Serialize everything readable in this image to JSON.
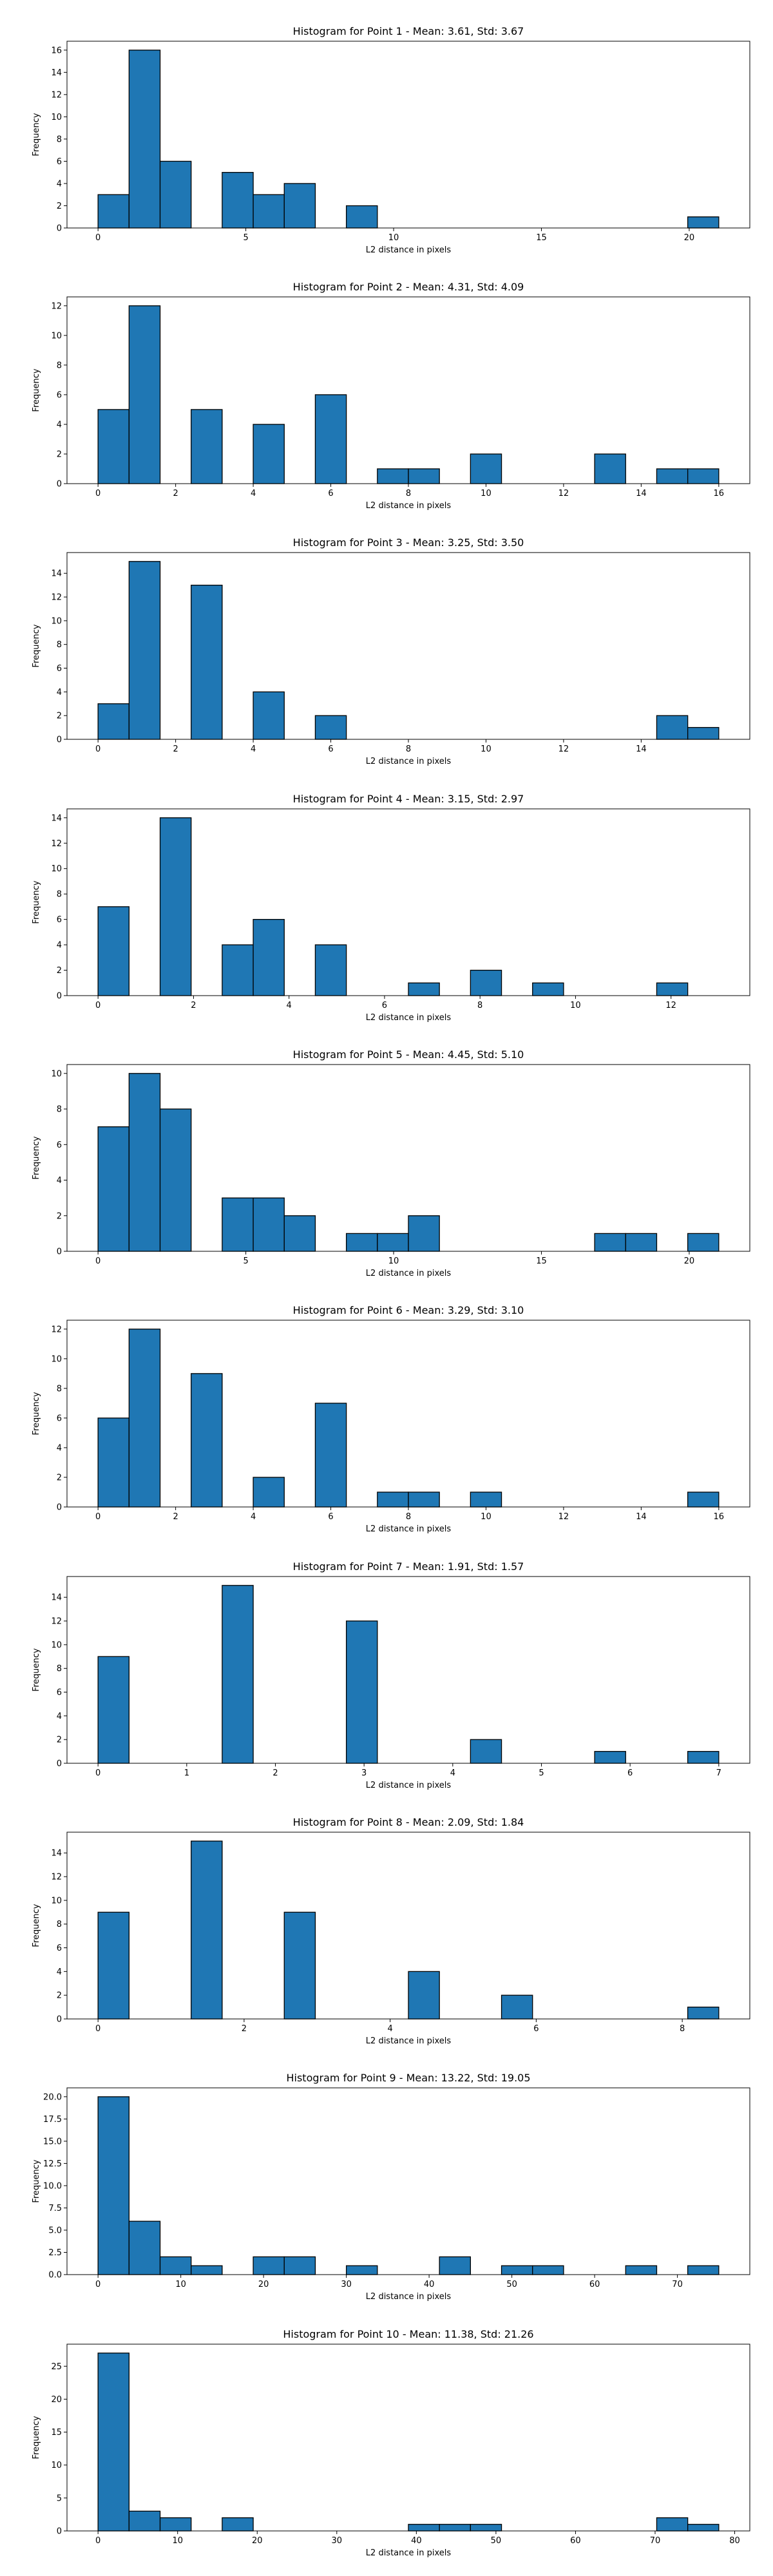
{
  "colors": {
    "bar_fill": "#1f77b4",
    "bar_edge": "#000000",
    "axes": "#000000",
    "background": "#ffffff"
  },
  "chart_data": [
    {
      "type": "bar",
      "title": "Histogram for Point 1 - Mean: 3.61, Std: 3.67",
      "xlabel": "L2 distance in pixels",
      "ylabel": "Frequency",
      "xlim": [
        -1.05,
        22.05
      ],
      "ylim": [
        0,
        16.8
      ],
      "xticks": [
        0,
        5,
        10,
        15,
        20
      ],
      "xtick_labels": [
        "0",
        "5",
        "10",
        "15",
        "20"
      ],
      "yticks": [
        0,
        2,
        4,
        6,
        8,
        10,
        12,
        14,
        16
      ],
      "ytick_labels": [
        "0",
        "2",
        "4",
        "6",
        "8",
        "10",
        "12",
        "14",
        "16"
      ],
      "bin_edges": [
        0,
        1.05,
        2.1,
        3.15,
        4.2,
        5.25,
        6.3,
        7.35,
        8.4,
        9.45,
        10.5,
        11.55,
        12.6,
        13.65,
        14.7,
        15.75,
        16.8,
        17.85,
        18.9,
        19.95,
        21
      ],
      "values": [
        3,
        16,
        6,
        0,
        5,
        3,
        4,
        0,
        2,
        0,
        0,
        0,
        0,
        0,
        0,
        0,
        0,
        0,
        0,
        1
      ]
    },
    {
      "type": "bar",
      "title": "Histogram for Point 2 - Mean: 4.31, Std: 4.09",
      "xlabel": "L2 distance in pixels",
      "ylabel": "Frequency",
      "xlim": [
        -0.8,
        16.8
      ],
      "ylim": [
        0,
        12.6
      ],
      "xticks": [
        0,
        2,
        4,
        6,
        8,
        10,
        12,
        14,
        16
      ],
      "xtick_labels": [
        "0",
        "2",
        "4",
        "6",
        "8",
        "10",
        "12",
        "14",
        "16"
      ],
      "yticks": [
        0,
        2,
        4,
        6,
        8,
        10,
        12
      ],
      "ytick_labels": [
        "0",
        "2",
        "4",
        "6",
        "8",
        "10",
        "12"
      ],
      "bin_edges": [
        0,
        0.8,
        1.6,
        2.4,
        3.2,
        4.0,
        4.8,
        5.6,
        6.4,
        7.2,
        8.0,
        8.8,
        9.6,
        10.4,
        11.2,
        12.0,
        12.8,
        13.6,
        14.4,
        15.2,
        16.0
      ],
      "values": [
        5,
        12,
        0,
        5,
        0,
        4,
        0,
        6,
        0,
        1,
        1,
        0,
        2,
        0,
        0,
        0,
        2,
        0,
        1,
        1
      ]
    },
    {
      "type": "bar",
      "title": "Histogram for Point 3 - Mean: 3.25, Std: 3.50",
      "xlabel": "L2 distance in pixels",
      "ylabel": "Frequency",
      "xlim": [
        -0.8,
        16.8
      ],
      "ylim": [
        0,
        15.75
      ],
      "xticks": [
        0,
        2,
        4,
        6,
        8,
        10,
        12,
        14
      ],
      "xtick_labels": [
        "0",
        "2",
        "4",
        "6",
        "8",
        "10",
        "12",
        "14"
      ],
      "yticks": [
        0,
        2,
        4,
        6,
        8,
        10,
        12,
        14
      ],
      "ytick_labels": [
        "0",
        "2",
        "4",
        "6",
        "8",
        "10",
        "12",
        "14"
      ],
      "bin_edges": [
        0,
        0.8,
        1.6,
        2.4,
        3.2,
        4.0,
        4.8,
        5.6,
        6.4,
        7.2,
        8.0,
        8.8,
        9.6,
        10.4,
        11.2,
        12.0,
        12.8,
        13.6,
        14.4,
        15.2,
        16.0
      ],
      "values": [
        3,
        15,
        0,
        13,
        0,
        4,
        0,
        2,
        0,
        0,
        0,
        0,
        0,
        0,
        0,
        0,
        0,
        0,
        2,
        1
      ]
    },
    {
      "type": "bar",
      "title": "Histogram for Point 4 - Mean: 3.15, Std: 2.97",
      "xlabel": "L2 distance in pixels",
      "ylabel": "Frequency",
      "xlim": [
        -0.65,
        13.65
      ],
      "ylim": [
        0,
        14.7
      ],
      "xticks": [
        0,
        2,
        4,
        6,
        8,
        10,
        12
      ],
      "xtick_labels": [
        "0",
        "2",
        "4",
        "6",
        "8",
        "10",
        "12"
      ],
      "yticks": [
        0,
        2,
        4,
        6,
        8,
        10,
        12,
        14
      ],
      "ytick_labels": [
        "0",
        "2",
        "4",
        "6",
        "8",
        "10",
        "12",
        "14"
      ],
      "bin_edges": [
        0,
        0.65,
        1.3,
        1.95,
        2.6,
        3.25,
        3.9,
        4.55,
        5.2,
        5.85,
        6.5,
        7.15,
        7.8,
        8.45,
        9.1,
        9.75,
        10.4,
        11.05,
        11.7,
        12.35,
        13.0
      ],
      "values": [
        7,
        0,
        14,
        0,
        4,
        6,
        0,
        4,
        0,
        0,
        1,
        0,
        2,
        0,
        1,
        0,
        0,
        0,
        1,
        0
      ]
    },
    {
      "type": "bar",
      "title": "Histogram for Point 5 - Mean: 4.45, Std: 5.10",
      "xlabel": "L2 distance in pixels",
      "ylabel": "Frequency",
      "xlim": [
        -1.05,
        22.05
      ],
      "ylim": [
        0,
        10.5
      ],
      "xticks": [
        0,
        5,
        10,
        15,
        20
      ],
      "xtick_labels": [
        "0",
        "5",
        "10",
        "15",
        "20"
      ],
      "yticks": [
        0,
        2,
        4,
        6,
        8,
        10
      ],
      "ytick_labels": [
        "0",
        "2",
        "4",
        "6",
        "8",
        "10"
      ],
      "bin_edges": [
        0,
        1.05,
        2.1,
        3.15,
        4.2,
        5.25,
        6.3,
        7.35,
        8.4,
        9.45,
        10.5,
        11.55,
        12.6,
        13.65,
        14.7,
        15.75,
        16.8,
        17.85,
        18.9,
        19.95,
        21
      ],
      "values": [
        7,
        10,
        8,
        0,
        3,
        3,
        2,
        0,
        1,
        1,
        2,
        0,
        0,
        0,
        0,
        0,
        1,
        1,
        0,
        1
      ]
    },
    {
      "type": "bar",
      "title": "Histogram for Point 6 - Mean: 3.29, Std: 3.10",
      "xlabel": "L2 distance in pixels",
      "ylabel": "Frequency",
      "xlim": [
        -0.8,
        16.8
      ],
      "ylim": [
        0,
        12.6
      ],
      "xticks": [
        0,
        2,
        4,
        6,
        8,
        10,
        12,
        14,
        16
      ],
      "xtick_labels": [
        "0",
        "2",
        "4",
        "6",
        "8",
        "10",
        "12",
        "14",
        "16"
      ],
      "yticks": [
        0,
        2,
        4,
        6,
        8,
        10,
        12
      ],
      "ytick_labels": [
        "0",
        "2",
        "4",
        "6",
        "8",
        "10",
        "12"
      ],
      "bin_edges": [
        0,
        0.8,
        1.6,
        2.4,
        3.2,
        4.0,
        4.8,
        5.6,
        6.4,
        7.2,
        8.0,
        8.8,
        9.6,
        10.4,
        11.2,
        12.0,
        12.8,
        13.6,
        14.4,
        15.2,
        16.0
      ],
      "values": [
        6,
        12,
        0,
        9,
        0,
        2,
        0,
        7,
        0,
        1,
        1,
        0,
        1,
        0,
        0,
        0,
        0,
        0,
        0,
        1
      ]
    },
    {
      "type": "bar",
      "title": "Histogram for Point 7 - Mean: 1.91, Std: 1.57",
      "xlabel": "L2 distance in pixels",
      "ylabel": "Frequency",
      "xlim": [
        -0.35,
        7.35
      ],
      "ylim": [
        0,
        15.75
      ],
      "xticks": [
        0,
        1,
        2,
        3,
        4,
        5,
        6,
        7
      ],
      "xtick_labels": [
        "0",
        "1",
        "2",
        "3",
        "4",
        "5",
        "6",
        "7"
      ],
      "yticks": [
        0,
        2,
        4,
        6,
        8,
        10,
        12,
        14
      ],
      "ytick_labels": [
        "0",
        "2",
        "4",
        "6",
        "8",
        "10",
        "12",
        "14"
      ],
      "bin_edges": [
        0,
        0.35,
        0.7,
        1.05,
        1.4,
        1.75,
        2.1,
        2.45,
        2.8,
        3.15,
        3.5,
        3.85,
        4.2,
        4.55,
        4.9,
        5.25,
        5.6,
        5.95,
        6.3,
        6.65,
        7.0
      ],
      "values": [
        9,
        0,
        0,
        0,
        15,
        0,
        0,
        0,
        12,
        0,
        0,
        0,
        2,
        0,
        0,
        0,
        1,
        0,
        0,
        1
      ]
    },
    {
      "type": "bar",
      "title": "Histogram for Point 8 - Mean: 2.09, Std: 1.84",
      "xlabel": "L2 distance in pixels",
      "ylabel": "Frequency",
      "xlim": [
        -0.425,
        8.925
      ],
      "ylim": [
        0,
        15.75
      ],
      "xticks": [
        0,
        2,
        4,
        6,
        8
      ],
      "xtick_labels": [
        "0",
        "2",
        "4",
        "6",
        "8"
      ],
      "yticks": [
        0,
        2,
        4,
        6,
        8,
        10,
        12,
        14
      ],
      "ytick_labels": [
        "0",
        "2",
        "4",
        "6",
        "8",
        "10",
        "12",
        "14"
      ],
      "bin_edges": [
        0,
        0.425,
        0.85,
        1.275,
        1.7,
        2.125,
        2.55,
        2.975,
        3.4,
        3.825,
        4.25,
        4.675,
        5.1,
        5.525,
        5.95,
        6.375,
        6.8,
        7.225,
        7.65,
        8.075,
        8.5
      ],
      "values": [
        9,
        0,
        0,
        15,
        0,
        0,
        9,
        0,
        0,
        0,
        4,
        0,
        0,
        2,
        0,
        0,
        0,
        0,
        0,
        1
      ]
    },
    {
      "type": "bar",
      "title": "Histogram for Point 9 - Mean: 13.22, Std: 19.05",
      "xlabel": "L2 distance in pixels",
      "ylabel": "Frequency",
      "xlim": [
        -3.75,
        78.75
      ],
      "ylim": [
        0,
        21.0
      ],
      "xticks": [
        0,
        10,
        20,
        30,
        40,
        50,
        60,
        70
      ],
      "xtick_labels": [
        "0",
        "10",
        "20",
        "30",
        "40",
        "50",
        "60",
        "70"
      ],
      "yticks": [
        0,
        2.5,
        5,
        7.5,
        10,
        12.5,
        15,
        17.5,
        20
      ],
      "ytick_labels": [
        "0.0",
        "2.5",
        "5.0",
        "7.5",
        "10.0",
        "12.5",
        "15.0",
        "17.5",
        "20.0"
      ],
      "bin_edges": [
        0,
        3.75,
        7.5,
        11.25,
        15,
        18.75,
        22.5,
        26.25,
        30,
        33.75,
        37.5,
        41.25,
        45,
        48.75,
        52.5,
        56.25,
        60,
        63.75,
        67.5,
        71.25,
        75
      ],
      "values": [
        20,
        6,
        2,
        1,
        0,
        2,
        2,
        0,
        1,
        0,
        0,
        2,
        0,
        1,
        1,
        0,
        0,
        1,
        0,
        1
      ]
    },
    {
      "type": "bar",
      "title": "Histogram for Point 10 - Mean: 11.38, Std: 21.26",
      "xlabel": "L2 distance in pixels",
      "ylabel": "Frequency",
      "xlim": [
        -3.9,
        81.9
      ],
      "ylim": [
        0,
        28.35
      ],
      "xticks": [
        0,
        10,
        20,
        30,
        40,
        50,
        60,
        70,
        80
      ],
      "xtick_labels": [
        "0",
        "10",
        "20",
        "30",
        "40",
        "50",
        "60",
        "70",
        "80"
      ],
      "yticks": [
        0,
        5,
        10,
        15,
        20,
        25
      ],
      "ytick_labels": [
        "0",
        "5",
        "10",
        "15",
        "20",
        "25"
      ],
      "bin_edges": [
        0,
        3.9,
        7.8,
        11.7,
        15.6,
        19.5,
        23.4,
        27.3,
        31.2,
        35.1,
        39,
        42.9,
        46.8,
        50.7,
        54.6,
        58.5,
        62.4,
        66.3,
        70.2,
        74.1,
        78
      ],
      "values": [
        27,
        3,
        2,
        0,
        2,
        0,
        0,
        0,
        0,
        0,
        1,
        1,
        1,
        0,
        0,
        0,
        0,
        0,
        2,
        1
      ]
    }
  ]
}
